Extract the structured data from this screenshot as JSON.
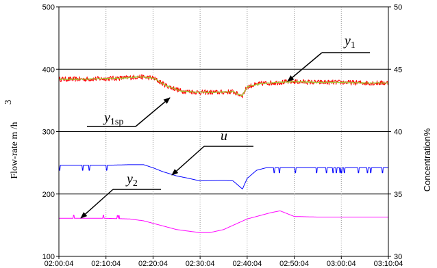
{
  "chart_data": {
    "type": "line",
    "xlabel": "",
    "ylabel_left": "Flow-rate m /h",
    "ylabel_left_superscript": "3",
    "ylabel_right": "Concentration%",
    "x_ticks": [
      "02:00:04",
      "02:10:04",
      "02:20:04",
      "02:30:04",
      "02:40:04",
      "02:50:04",
      "03:00:04",
      "03:10:04"
    ],
    "xlim": [
      "02:00:04",
      "03:10:04"
    ],
    "ylim_left": [
      100,
      500
    ],
    "yticks_left": [
      "100",
      "200",
      "300",
      "400",
      "500"
    ],
    "ylim_right": [
      30,
      50
    ],
    "yticks_right": [
      "30",
      "35",
      "40",
      "45",
      "50"
    ],
    "grid": "horizontal major lines and dotted vertical lines at each time tick",
    "annotations": [
      {
        "symbol": "y",
        "sub": "1",
        "target": "y1"
      },
      {
        "symbol": "y",
        "sub": "1sp",
        "target": "y1sp"
      },
      {
        "symbol": "u",
        "sub": "",
        "target": "u"
      },
      {
        "symbol": "y",
        "sub": "2",
        "target": "y2"
      }
    ],
    "series": [
      {
        "id": "y1",
        "axis": "left",
        "color": "#ff0000",
        "noisy": true,
        "noise_amplitude": 4,
        "x": [
          "02:00:04",
          "02:05:04",
          "02:10:04",
          "02:14:04",
          "02:17:04",
          "02:20:04",
          "02:23:04",
          "02:26:04",
          "02:30:04",
          "02:34:04",
          "02:37:04",
          "02:38:04",
          "02:39:04",
          "02:40:04",
          "02:43:04",
          "02:47:04",
          "02:50:04",
          "02:55:04",
          "03:00:04",
          "03:05:04",
          "03:10:04"
        ],
        "y": [
          384,
          384,
          385,
          386,
          388,
          386,
          373,
          365,
          363,
          363,
          364,
          360,
          358,
          372,
          377,
          379,
          380,
          379,
          379,
          378,
          378
        ]
      },
      {
        "id": "y1sp",
        "axis": "left",
        "color": "#9acd32",
        "noisy": false,
        "x": [
          "02:00:04",
          "02:05:04",
          "02:10:04",
          "02:14:04",
          "02:17:04",
          "02:20:04",
          "02:23:04",
          "02:26:04",
          "02:30:04",
          "02:34:04",
          "02:37:04",
          "02:38:04",
          "02:39:04",
          "02:40:04",
          "02:43:04",
          "02:47:04",
          "02:50:04",
          "02:55:04",
          "03:00:04",
          "03:05:04",
          "03:10:04"
        ],
        "y": [
          384,
          384,
          385,
          386,
          388,
          386,
          373,
          365,
          363,
          363,
          364,
          360,
          358,
          372,
          377,
          379,
          380,
          379,
          379,
          378,
          378
        ]
      },
      {
        "id": "u",
        "axis": "left",
        "color": "#0000ff",
        "noisy": false,
        "spikes": "downward steps about 8 units deep, frequent after 02:44",
        "x": [
          "02:00:04",
          "02:05:04",
          "02:10:04",
          "02:15:04",
          "02:18:04",
          "02:20:04",
          "02:22:04",
          "02:25:04",
          "02:27:04",
          "02:30:04",
          "02:35:04",
          "02:37:04",
          "02:39:04",
          "02:40:04",
          "02:42:04",
          "02:44:04",
          "02:50:04",
          "02:55:04",
          "03:00:04",
          "03:05:04",
          "03:10:04"
        ],
        "y": [
          246,
          246,
          246,
          247,
          247,
          242,
          236,
          229,
          226,
          221,
          222,
          221,
          208,
          225,
          238,
          242,
          242,
          242,
          242,
          242,
          242
        ]
      },
      {
        "id": "y2",
        "axis": "left",
        "color": "#ff00ff",
        "noisy": false,
        "spikes": "upward steps about 5 units, frequent before 02:16",
        "x": [
          "02:00:04",
          "02:05:04",
          "02:10:04",
          "02:15:04",
          "02:18:04",
          "02:20:04",
          "02:25:04",
          "02:30:04",
          "02:32:04",
          "02:35:04",
          "02:40:04",
          "02:45:04",
          "02:47:04",
          "02:50:04",
          "02:55:04",
          "03:00:04",
          "03:05:04",
          "03:10:04"
        ],
        "y": [
          161,
          161,
          161,
          160,
          157,
          153,
          143,
          138,
          138,
          143,
          160,
          170,
          173,
          164,
          163,
          163,
          163,
          163
        ]
      }
    ]
  }
}
